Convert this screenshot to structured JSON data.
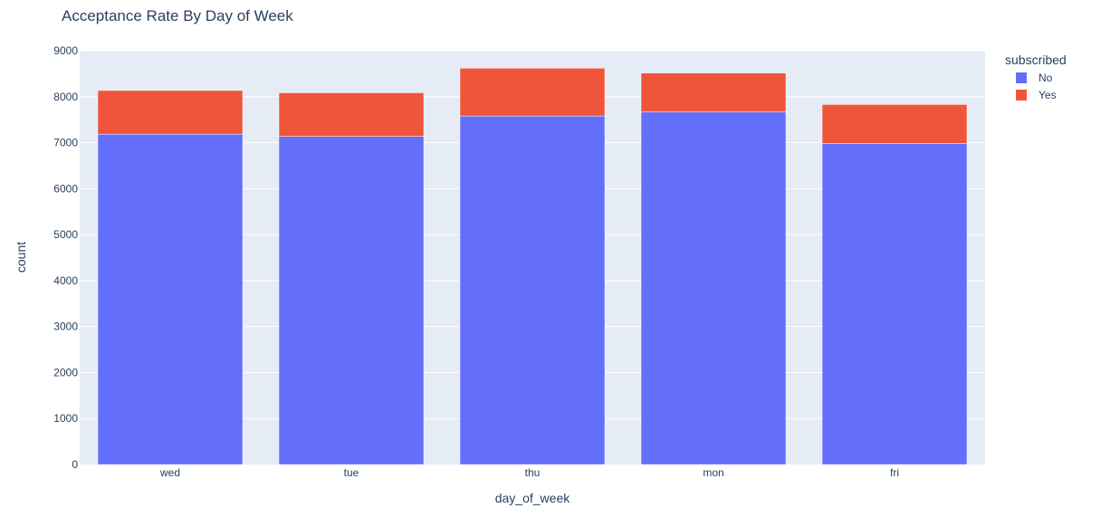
{
  "chart_data": {
    "type": "bar",
    "barmode": "stack",
    "title": "Acceptance Rate By Day of Week",
    "xlabel": "day_of_week",
    "ylabel": "count",
    "ylim": [
      0,
      9000
    ],
    "yticks": [
      0,
      1000,
      2000,
      3000,
      4000,
      5000,
      6000,
      7000,
      8000,
      9000
    ],
    "categories": [
      "wed",
      "tue",
      "thu",
      "mon",
      "fri"
    ],
    "grid": true,
    "legend": {
      "title": "subscribed",
      "position": "top-right"
    },
    "series": [
      {
        "name": "No",
        "color": "#636efa",
        "values": [
          7185,
          7135,
          7580,
          7665,
          6980
        ]
      },
      {
        "name": "Yes",
        "color": "#ef553b",
        "values": [
          950,
          950,
          1040,
          850,
          850
        ]
      }
    ]
  }
}
